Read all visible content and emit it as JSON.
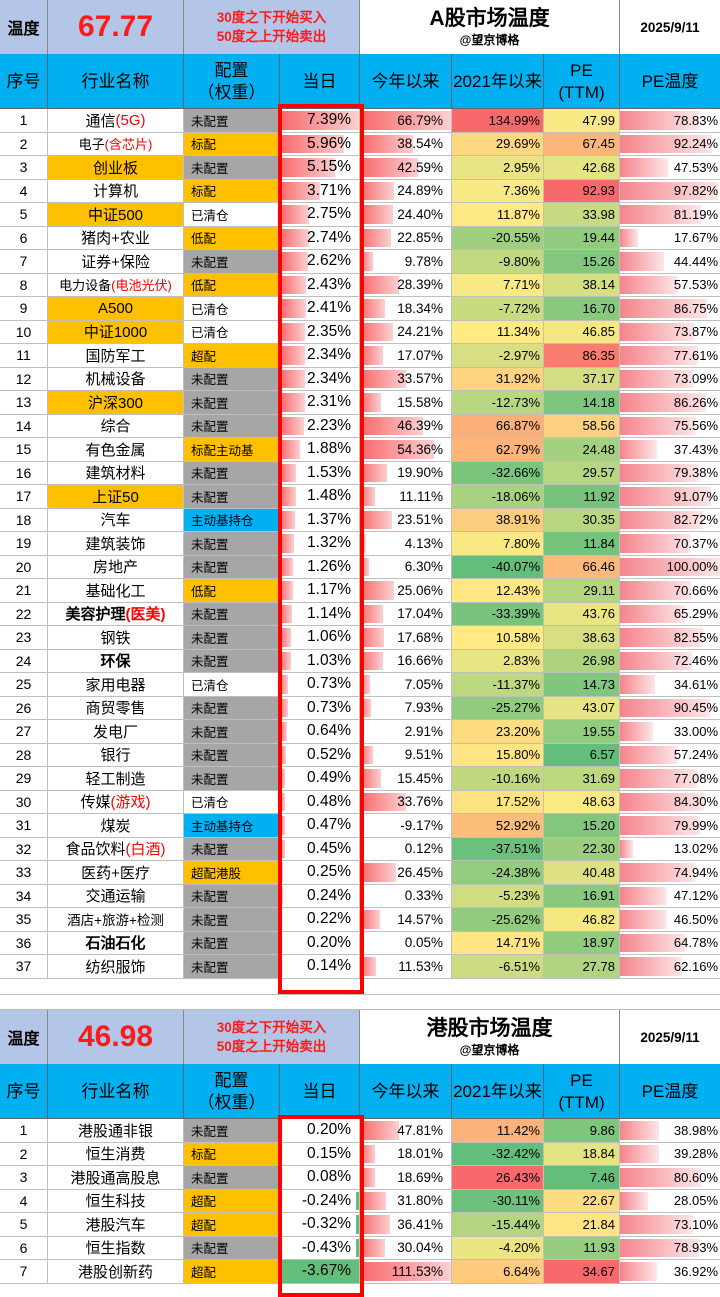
{
  "a_share": {
    "temp_label": "温度",
    "temp_value": "67.77",
    "rule_buy": "30度之下开始买入",
    "rule_sell": "50度之上开始卖出",
    "title": "A股市场温度",
    "author": "@望京博格",
    "date": "2025/9/11",
    "headers": {
      "no": "序号",
      "name": "行业名称",
      "alloc": "配置\n（权重）",
      "day": "当日",
      "ytd": "今年以来",
      "since2021": "2021年以来",
      "pe": "PE\n(TTM)",
      "pe_temp": "PE温度"
    },
    "rows": [
      {
        "no": "1",
        "name": "通信",
        "hl": "(5G)",
        "alloc": "未配置",
        "day": "7.39%",
        "ytd": "66.79%",
        "since": "134.99%",
        "pe": "47.99",
        "pet": "78.83%"
      },
      {
        "no": "2",
        "name": "电子",
        "hl": "(含芯片)",
        "alloc": "标配",
        "day": "5.96%",
        "ytd": "38.54%",
        "since": "29.69%",
        "pe": "67.45",
        "pet": "92.24%"
      },
      {
        "no": "3",
        "name": "创业板",
        "hl": "",
        "alloc": "未配置",
        "day": "5.15%",
        "ytd": "42.59%",
        "since": "2.95%",
        "pe": "42.68",
        "pet": "47.53%"
      },
      {
        "no": "4",
        "name": "计算机",
        "hl": "",
        "alloc": "标配",
        "day": "3.71%",
        "ytd": "24.89%",
        "since": "7.36%",
        "pe": "92.93",
        "pet": "97.82%"
      },
      {
        "no": "5",
        "name": "中证500",
        "hl": "",
        "alloc": "已清仓",
        "day": "2.75%",
        "ytd": "24.40%",
        "since": "11.87%",
        "pe": "33.98",
        "pet": "81.19%"
      },
      {
        "no": "6",
        "name": "猪肉+农业",
        "hl": "",
        "alloc": "低配",
        "day": "2.74%",
        "ytd": "22.85%",
        "since": "-20.55%",
        "pe": "19.44",
        "pet": "17.67%"
      },
      {
        "no": "7",
        "name": "证券+保险",
        "hl": "",
        "alloc": "未配置",
        "day": "2.62%",
        "ytd": "9.78%",
        "since": "-9.80%",
        "pe": "15.26",
        "pet": "44.44%"
      },
      {
        "no": "8",
        "name": "电力设备",
        "hl": "(电池光伏)",
        "alloc": "低配",
        "day": "2.43%",
        "ytd": "28.39%",
        "since": "7.71%",
        "pe": "38.14",
        "pet": "57.53%"
      },
      {
        "no": "9",
        "name": "A500",
        "hl": "",
        "alloc": "已清仓",
        "day": "2.41%",
        "ytd": "18.34%",
        "since": "-7.72%",
        "pe": "16.70",
        "pet": "86.75%"
      },
      {
        "no": "10",
        "name": "中证1000",
        "hl": "",
        "alloc": "已清仓",
        "day": "2.35%",
        "ytd": "24.21%",
        "since": "11.34%",
        "pe": "46.85",
        "pet": "73.87%"
      },
      {
        "no": "11",
        "name": "国防军工",
        "hl": "",
        "alloc": "超配",
        "day": "2.34%",
        "ytd": "17.07%",
        "since": "-2.97%",
        "pe": "86.35",
        "pet": "77.61%"
      },
      {
        "no": "12",
        "name": "机械设备",
        "hl": "",
        "alloc": "未配置",
        "day": "2.34%",
        "ytd": "33.57%",
        "since": "31.92%",
        "pe": "37.17",
        "pet": "73.09%"
      },
      {
        "no": "13",
        "name": "沪深300",
        "hl": "",
        "alloc": "未配置",
        "day": "2.31%",
        "ytd": "15.58%",
        "since": "-12.73%",
        "pe": "14.18",
        "pet": "86.26%"
      },
      {
        "no": "14",
        "name": "综合",
        "hl": "",
        "alloc": "未配置",
        "day": "2.23%",
        "ytd": "46.39%",
        "since": "66.87%",
        "pe": "58.56",
        "pet": "75.56%"
      },
      {
        "no": "15",
        "name": "有色金属",
        "hl": "",
        "alloc": "标配主动基",
        "day": "1.88%",
        "ytd": "54.36%",
        "since": "62.79%",
        "pe": "24.48",
        "pet": "37.43%"
      },
      {
        "no": "16",
        "name": "建筑材料",
        "hl": "",
        "alloc": "未配置",
        "day": "1.53%",
        "ytd": "19.90%",
        "since": "-32.66%",
        "pe": "29.57",
        "pet": "79.38%"
      },
      {
        "no": "17",
        "name": "上证50",
        "hl": "",
        "alloc": "未配置",
        "day": "1.48%",
        "ytd": "11.11%",
        "since": "-18.06%",
        "pe": "11.92",
        "pet": "91.07%"
      },
      {
        "no": "18",
        "name": "汽车",
        "hl": "",
        "alloc": "主动基持仓",
        "day": "1.37%",
        "ytd": "23.51%",
        "since": "38.91%",
        "pe": "30.35",
        "pet": "82.72%"
      },
      {
        "no": "19",
        "name": "建筑装饰",
        "hl": "",
        "alloc": "未配置",
        "day": "1.32%",
        "ytd": "4.13%",
        "since": "7.80%",
        "pe": "11.84",
        "pet": "70.37%"
      },
      {
        "no": "20",
        "name": "房地产",
        "hl": "",
        "alloc": "未配置",
        "day": "1.26%",
        "ytd": "6.30%",
        "since": "-40.07%",
        "pe": "66.46",
        "pet": "100.00%"
      },
      {
        "no": "21",
        "name": "基础化工",
        "hl": "",
        "alloc": "低配",
        "day": "1.17%",
        "ytd": "25.06%",
        "since": "12.43%",
        "pe": "29.11",
        "pet": "70.66%"
      },
      {
        "no": "22",
        "name": "美容护理",
        "hl": "(医美)",
        "alloc": "未配置",
        "day": "1.14%",
        "ytd": "17.04%",
        "since": "-33.39%",
        "pe": "43.76",
        "pet": "65.29%"
      },
      {
        "no": "23",
        "name": "钢铁",
        "hl": "",
        "alloc": "未配置",
        "day": "1.06%",
        "ytd": "17.68%",
        "since": "10.58%",
        "pe": "38.63",
        "pet": "82.55%"
      },
      {
        "no": "24",
        "name": "环保",
        "hl": "",
        "alloc": "未配置",
        "day": "1.03%",
        "ytd": "16.66%",
        "since": "2.83%",
        "pe": "26.98",
        "pet": "72.46%"
      },
      {
        "no": "25",
        "name": "家用电器",
        "hl": "",
        "alloc": "已清仓",
        "day": "0.73%",
        "ytd": "7.05%",
        "since": "-11.37%",
        "pe": "14.73",
        "pet": "34.61%"
      },
      {
        "no": "26",
        "name": "商贸零售",
        "hl": "",
        "alloc": "未配置",
        "day": "0.73%",
        "ytd": "7.93%",
        "since": "-25.27%",
        "pe": "43.07",
        "pet": "90.45%"
      },
      {
        "no": "27",
        "name": "发电厂",
        "hl": "",
        "alloc": "未配置",
        "day": "0.64%",
        "ytd": "2.91%",
        "since": "23.20%",
        "pe": "19.55",
        "pet": "33.00%"
      },
      {
        "no": "28",
        "name": "银行",
        "hl": "",
        "alloc": "未配置",
        "day": "0.52%",
        "ytd": "9.51%",
        "since": "15.80%",
        "pe": "6.57",
        "pet": "57.24%"
      },
      {
        "no": "29",
        "name": "轻工制造",
        "hl": "",
        "alloc": "未配置",
        "day": "0.49%",
        "ytd": "15.45%",
        "since": "-10.16%",
        "pe": "31.69",
        "pet": "77.08%"
      },
      {
        "no": "30",
        "name": "传媒",
        "hl": "(游戏)",
        "alloc": "已清仓",
        "day": "0.48%",
        "ytd": "33.76%",
        "since": "17.52%",
        "pe": "48.63",
        "pet": "84.30%"
      },
      {
        "no": "31",
        "name": "煤炭",
        "hl": "",
        "alloc": "主动基持仓",
        "day": "0.47%",
        "ytd": "-9.17%",
        "since": "52.92%",
        "pe": "15.20",
        "pet": "79.99%"
      },
      {
        "no": "32",
        "name": "食品饮料",
        "hl": "(白酒)",
        "alloc": "未配置",
        "day": "0.45%",
        "ytd": "0.12%",
        "since": "-37.51%",
        "pe": "22.30",
        "pet": "13.02%"
      },
      {
        "no": "33",
        "name": "医药+医疗",
        "hl": "",
        "alloc": "超配港股",
        "day": "0.25%",
        "ytd": "26.45%",
        "since": "-24.38%",
        "pe": "40.48",
        "pet": "74.94%"
      },
      {
        "no": "34",
        "name": "交通运输",
        "hl": "",
        "alloc": "未配置",
        "day": "0.24%",
        "ytd": "0.33%",
        "since": "-5.23%",
        "pe": "16.91",
        "pet": "47.12%"
      },
      {
        "no": "35",
        "name": "酒店+旅游+检测",
        "hl": "",
        "alloc": "未配置",
        "day": "0.22%",
        "ytd": "14.57%",
        "since": "-25.62%",
        "pe": "46.82",
        "pet": "46.50%"
      },
      {
        "no": "36",
        "name": "石油石化",
        "hl": "",
        "alloc": "未配置",
        "day": "0.20%",
        "ytd": "0.05%",
        "since": "14.71%",
        "pe": "18.97",
        "pet": "64.78%"
      },
      {
        "no": "37",
        "name": "纺织服饰",
        "hl": "",
        "alloc": "未配置",
        "day": "0.14%",
        "ytd": "11.53%",
        "since": "-6.51%",
        "pe": "27.78",
        "pet": "62.16%"
      }
    ]
  },
  "hk_share": {
    "temp_label": "温度",
    "temp_value": "46.98",
    "rule_buy": "30度之下开始买入",
    "rule_sell": "50度之上开始卖出",
    "title": "港股市场温度",
    "author": "@望京博格",
    "date": "2025/9/11",
    "headers": {
      "no": "序号",
      "name": "行业名称",
      "alloc": "配置\n（权重）",
      "day": "当日",
      "ytd": "今年以来",
      "since2021": "2021年以来",
      "pe": "PE\n(TTM)",
      "pe_temp": "PE温度"
    },
    "rows": [
      {
        "no": "1",
        "name": "港股通非银",
        "hl": "",
        "alloc": "未配置",
        "day": "0.20%",
        "ytd": "47.81%",
        "since": "11.42%",
        "pe": "9.86",
        "pet": "38.98%"
      },
      {
        "no": "2",
        "name": "恒生消费",
        "hl": "",
        "alloc": "标配",
        "day": "0.15%",
        "ytd": "18.01%",
        "since": "-32.42%",
        "pe": "18.84",
        "pet": "39.28%"
      },
      {
        "no": "3",
        "name": "港股通高股息",
        "hl": "",
        "alloc": "未配置",
        "day": "0.08%",
        "ytd": "18.69%",
        "since": "26.43%",
        "pe": "7.46",
        "pet": "80.60%"
      },
      {
        "no": "4",
        "name": "恒生科技",
        "hl": "",
        "alloc": "超配",
        "day": "-0.24%",
        "ytd": "31.80%",
        "since": "-30.11%",
        "pe": "22.67",
        "pet": "28.05%"
      },
      {
        "no": "5",
        "name": "港股汽车",
        "hl": "",
        "alloc": "超配",
        "day": "-0.32%",
        "ytd": "36.41%",
        "since": "-15.44%",
        "pe": "21.84",
        "pet": "73.10%"
      },
      {
        "no": "6",
        "name": "恒生指数",
        "hl": "",
        "alloc": "未配置",
        "day": "-0.43%",
        "ytd": "30.04%",
        "since": "-4.20%",
        "pe": "11.93",
        "pet": "78.93%"
      },
      {
        "no": "7",
        "name": "港股创新药",
        "hl": "",
        "alloc": "超配",
        "day": "-3.67%",
        "ytd": "111.53%",
        "since": "6.64%",
        "pe": "34.67",
        "pet": "36.92%"
      }
    ]
  },
  "colors": {
    "accent_blue": "#00b0f0",
    "header_blue": "#b4c6e7",
    "gold": "#ffc000",
    "gray": "#a6a6a6",
    "red": "#ff0000",
    "green": "#63be7b"
  }
}
